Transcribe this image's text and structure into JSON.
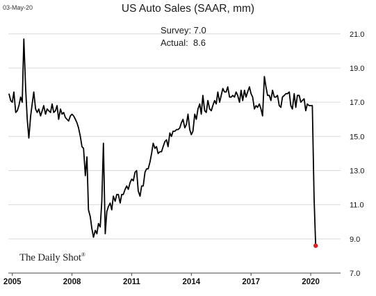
{
  "header": {
    "date": "03-May-20"
  },
  "annotations": {
    "survey": "Survey: 7.0",
    "actual": "Actual:  8.6"
  },
  "brand": {
    "text": "The Daily Shot",
    "mark": "®"
  },
  "colors": {
    "line": "#000000",
    "last_point": "#e02020",
    "grid": "#d9d9d9"
  },
  "chart_data": {
    "type": "line",
    "title": "US Auto Sales (SAAR, mm)",
    "xlabel": "",
    "ylabel": "",
    "xlim": [
      2004.8,
      2021.5
    ],
    "ylim": [
      7.0,
      21.6
    ],
    "x_ticks": [
      "2005",
      "2008",
      "2011",
      "2014",
      "2017",
      "2020"
    ],
    "y_ticks": [
      "7.0",
      "9.0",
      "11.0",
      "13.0",
      "15.0",
      "17.0",
      "19.0",
      "21.0"
    ],
    "y_axis_side": "right",
    "grid": "horizontal",
    "highlight_last_point": true,
    "series": [
      {
        "x": [
          2004.83,
          2004.92,
          2005.0,
          2005.08,
          2005.17,
          2005.25,
          2005.33,
          2005.42,
          2005.5,
          2005.58,
          2005.67,
          2005.75,
          2005.83,
          2005.92,
          2006.0,
          2006.08,
          2006.17,
          2006.25,
          2006.33,
          2006.42,
          2006.5,
          2006.58,
          2006.67,
          2006.75,
          2006.83,
          2006.92,
          2007.0,
          2007.08,
          2007.17,
          2007.25,
          2007.33,
          2007.42,
          2007.5,
          2007.58,
          2007.67,
          2007.75,
          2007.83,
          2007.92,
          2008.0,
          2008.08,
          2008.17,
          2008.25,
          2008.33,
          2008.42,
          2008.5,
          2008.58,
          2008.67,
          2008.75,
          2008.83,
          2008.92,
          2009.0,
          2009.08,
          2009.17,
          2009.25,
          2009.33,
          2009.42,
          2009.5,
          2009.58,
          2009.67,
          2009.75,
          2009.83,
          2009.92,
          2010.0,
          2010.08,
          2010.17,
          2010.25,
          2010.33,
          2010.42,
          2010.5,
          2010.58,
          2010.67,
          2010.75,
          2010.83,
          2010.92,
          2011.0,
          2011.08,
          2011.17,
          2011.25,
          2011.33,
          2011.42,
          2011.5,
          2011.58,
          2011.67,
          2011.75,
          2011.83,
          2011.92,
          2012.0,
          2012.08,
          2012.17,
          2012.25,
          2012.33,
          2012.42,
          2012.5,
          2012.58,
          2012.67,
          2012.75,
          2012.83,
          2012.92,
          2013.0,
          2013.08,
          2013.17,
          2013.25,
          2013.33,
          2013.42,
          2013.5,
          2013.58,
          2013.67,
          2013.75,
          2013.83,
          2013.92,
          2014.0,
          2014.08,
          2014.17,
          2014.25,
          2014.33,
          2014.42,
          2014.5,
          2014.58,
          2014.67,
          2014.75,
          2014.83,
          2014.92,
          2015.0,
          2015.08,
          2015.17,
          2015.25,
          2015.33,
          2015.42,
          2015.5,
          2015.58,
          2015.67,
          2015.75,
          2015.83,
          2015.92,
          2016.0,
          2016.08,
          2016.17,
          2016.25,
          2016.33,
          2016.42,
          2016.5,
          2016.58,
          2016.67,
          2016.75,
          2016.83,
          2016.92,
          2017.0,
          2017.08,
          2017.17,
          2017.25,
          2017.33,
          2017.42,
          2017.5,
          2017.58,
          2017.67,
          2017.75,
          2017.83,
          2017.92,
          2018.0,
          2018.08,
          2018.17,
          2018.25,
          2018.33,
          2018.42,
          2018.5,
          2018.58,
          2018.67,
          2018.75,
          2018.83,
          2018.92,
          2019.0,
          2019.08,
          2019.17,
          2019.25,
          2019.33,
          2019.42,
          2019.5,
          2019.58,
          2019.67,
          2019.75,
          2019.83,
          2019.92,
          2020.0,
          2020.08,
          2020.17,
          2020.25
        ],
        "y": [
          17.5,
          17.1,
          17.0,
          17.6,
          16.4,
          16.5,
          16.8,
          17.3,
          17.0,
          20.7,
          17.8,
          16.0,
          14.9,
          16.2,
          16.9,
          17.6,
          16.6,
          16.4,
          16.6,
          16.2,
          16.5,
          16.8,
          16.3,
          16.6,
          16.5,
          16.4,
          16.9,
          16.4,
          16.5,
          16.8,
          16.0,
          16.6,
          16.3,
          16.4,
          16.1,
          16.0,
          15.9,
          16.2,
          16.3,
          16.2,
          16.0,
          15.8,
          15.5,
          15.0,
          14.4,
          14.3,
          12.7,
          13.8,
          10.7,
          10.3,
          9.6,
          9.1,
          9.5,
          9.3,
          9.9,
          9.7,
          11.2,
          14.6,
          9.3,
          10.6,
          10.9,
          11.1,
          10.7,
          11.5,
          11.2,
          11.6,
          11.6,
          11.1,
          11.6,
          11.6,
          11.9,
          12.1,
          11.9,
          12.3,
          12.5,
          12.4,
          12.9,
          13.0,
          11.8,
          11.5,
          12.1,
          12.1,
          12.9,
          13.1,
          13.1,
          13.5,
          14.0,
          14.6,
          14.3,
          14.4,
          14.0,
          14.1,
          14.1,
          14.4,
          14.7,
          14.8,
          14.4,
          15.2,
          15.0,
          15.3,
          15.3,
          15.4,
          15.4,
          15.5,
          15.8,
          16.0,
          15.5,
          15.7,
          16.3,
          15.4,
          15.1,
          15.3,
          16.3,
          16.0,
          16.6,
          16.9,
          16.3,
          17.4,
          16.5,
          16.4,
          17.1,
          16.6,
          16.5,
          16.8,
          17.1,
          16.9,
          17.6,
          17.0,
          17.4,
          17.8,
          17.6,
          17.6,
          17.9,
          17.3,
          17.3,
          17.4,
          17.3,
          17.6,
          17.4,
          17.0,
          17.7,
          17.1,
          17.7,
          17.3,
          17.6,
          17.9,
          17.5,
          17.3,
          16.6,
          16.8,
          16.7,
          16.9,
          16.6,
          16.2,
          18.5,
          17.9,
          17.4,
          17.4,
          17.1,
          17.7,
          17.3,
          17.3,
          17.4,
          16.8,
          16.7,
          17.3,
          17.4,
          17.5,
          17.5,
          17.6,
          16.8,
          16.6,
          17.5,
          16.7,
          17.4,
          17.4,
          17.0,
          17.1,
          17.2,
          16.5,
          16.9,
          16.8,
          16.8,
          16.8,
          11.4,
          8.6
        ]
      }
    ]
  }
}
